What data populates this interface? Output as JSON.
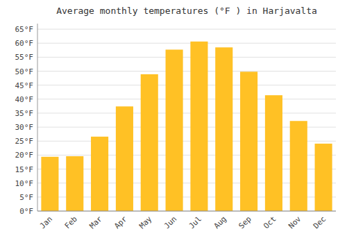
{
  "chart_data": {
    "type": "bar",
    "title": "Average monthly temperatures (°F ) in Harjavalta",
    "categories": [
      "Jan",
      "Feb",
      "Mar",
      "Apr",
      "May",
      "Jun",
      "Jul",
      "Aug",
      "Sep",
      "Oct",
      "Nov",
      "Dec"
    ],
    "values": [
      19.4,
      19.6,
      26.6,
      37.4,
      48.9,
      57.7,
      60.6,
      58.5,
      49.8,
      41.4,
      32.2,
      24.1
    ],
    "color": "#FFC125",
    "ylim": [
      0,
      67
    ],
    "yticks": [
      {
        "value": 0,
        "label": "0°F"
      },
      {
        "value": 5,
        "label": "5°F"
      },
      {
        "value": 10,
        "label": "10°F"
      },
      {
        "value": 15,
        "label": "15°F"
      },
      {
        "value": 20,
        "label": "20°F"
      },
      {
        "value": 25,
        "label": "25°F"
      },
      {
        "value": 30,
        "label": "30°F"
      },
      {
        "value": 35,
        "label": "35°F"
      },
      {
        "value": 40,
        "label": "40°F"
      },
      {
        "value": 45,
        "label": "45°F"
      },
      {
        "value": 50,
        "label": "50°F"
      },
      {
        "value": 55,
        "label": "55°F"
      },
      {
        "value": 60,
        "label": "60°F"
      },
      {
        "value": 65,
        "label": "65°F"
      }
    ],
    "grid": true
  }
}
